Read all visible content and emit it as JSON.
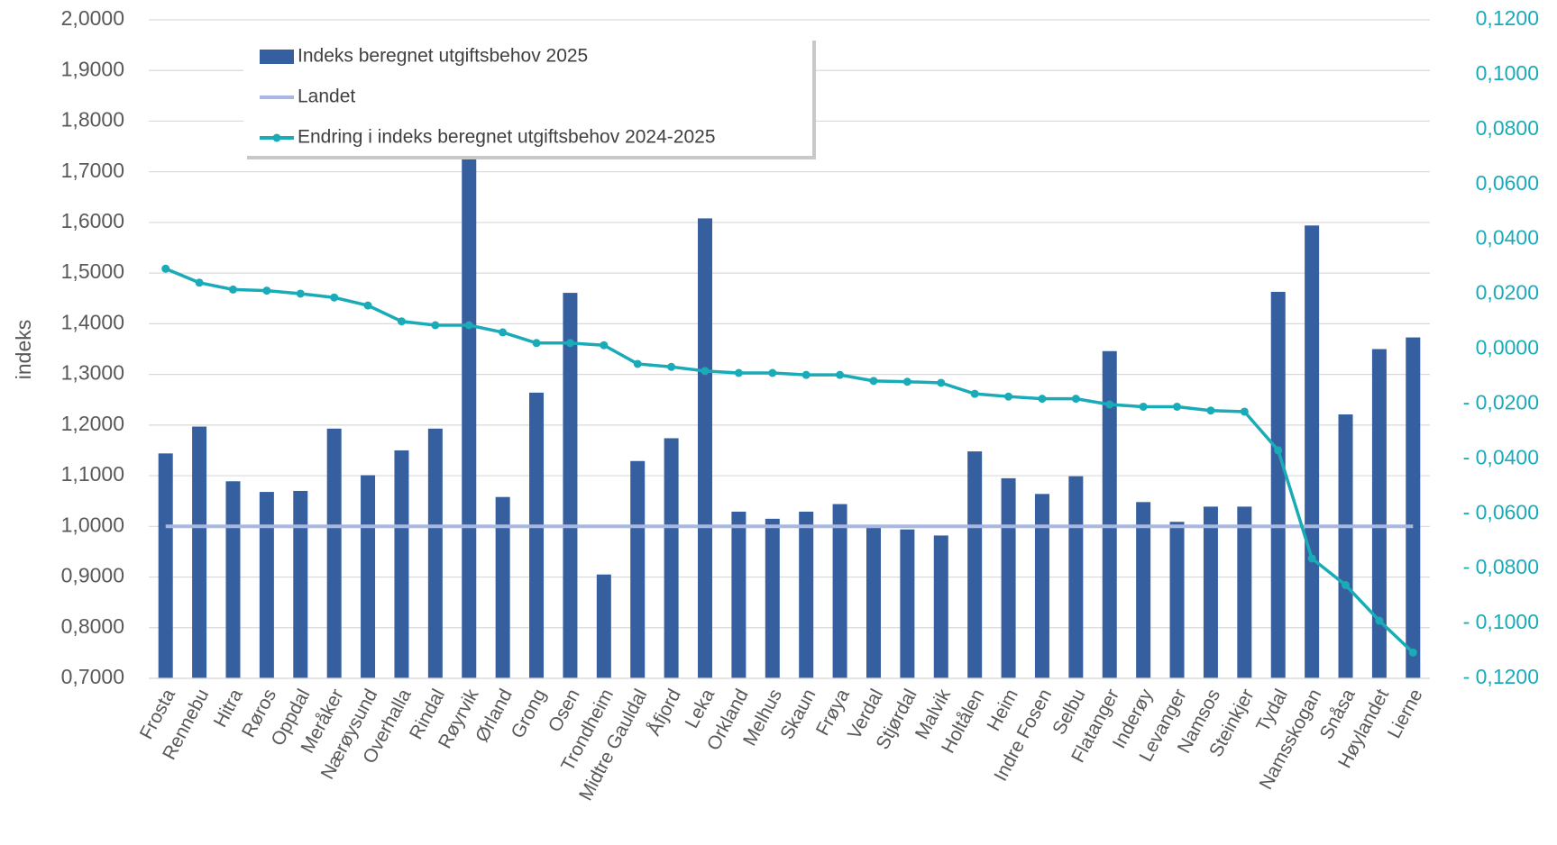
{
  "chart_data": {
    "type": "bar-line",
    "y_label": "indeks",
    "categories": [
      "Frosta",
      "Rennebu",
      "Hitra",
      "Røros",
      "Oppdal",
      "Meråker",
      "Nærøysund",
      "Overhalla",
      "Rindal",
      "Røyrvik",
      "Ørland",
      "Grong",
      "Osen",
      "Trondheim",
      "Midtre Gauldal",
      "Åfjord",
      "Leka",
      "Orkland",
      "Melhus",
      "Skaun",
      "Frøya",
      "Verdal",
      "Stjørdal",
      "Malvik",
      "Holtålen",
      "Heim",
      "Indre Fosen",
      "Selbu",
      "Flatanger",
      "Inderøy",
      "Levanger",
      "Namsos",
      "Steinkjer",
      "Tydal",
      "Namsskogan",
      "Snåsa",
      "Høylandet",
      "Lierne"
    ],
    "series": [
      {
        "name": "Indeks beregnet utgiftsbehov 2025",
        "type": "bar",
        "color": "#365f9f",
        "values": [
          1.144,
          1.197,
          1.089,
          1.068,
          1.07,
          1.193,
          1.101,
          1.15,
          1.193,
          1.95,
          1.058,
          1.264,
          1.461,
          0.905,
          1.129,
          1.174,
          1.608,
          1.029,
          1.015,
          1.029,
          1.044,
          0.997,
          0.994,
          0.982,
          1.148,
          1.095,
          1.064,
          1.099,
          1.346,
          1.048,
          1.009,
          1.039,
          1.039,
          1.463,
          1.594,
          1.221,
          1.35,
          1.373
        ]
      },
      {
        "name": "Landet",
        "type": "hline",
        "color": "#a9b8e0",
        "value": 1
      },
      {
        "name": "Endring i indeks beregnet utgiftsbehov 2024-2025",
        "type": "line",
        "axis": "y2",
        "color": "#1aabb8",
        "values": [
          0.0293,
          0.0242,
          0.0217,
          0.0213,
          0.0202,
          0.0188,
          0.0159,
          0.0101,
          0.0087,
          0.0087,
          0.0061,
          0.0022,
          0.0022,
          0.0014,
          -0.0054,
          -0.0065,
          -0.008,
          -0.0087,
          -0.0087,
          -0.0094,
          -0.0094,
          -0.0116,
          -0.0119,
          -0.0123,
          -0.0163,
          -0.0173,
          -0.0181,
          -0.0181,
          -0.0202,
          -0.021,
          -0.021,
          -0.0224,
          -0.0228,
          -0.0369,
          -0.0763,
          -0.086,
          -0.099,
          -0.1106
        ]
      }
    ],
    "ylim": [
      0.7,
      2.0
    ],
    "yticks": [
      {
        "value": 0.7,
        "label": "0,7000"
      },
      {
        "value": 0.8,
        "label": "0,8000"
      },
      {
        "value": 0.9,
        "label": "0,9000"
      },
      {
        "value": 1.0,
        "label": "1,0000"
      },
      {
        "value": 1.1,
        "label": "1,1000"
      },
      {
        "value": 1.2,
        "label": "1,2000"
      },
      {
        "value": 1.3,
        "label": "1,3000"
      },
      {
        "value": 1.4,
        "label": "1,4000"
      },
      {
        "value": 1.5,
        "label": "1,5000"
      },
      {
        "value": 1.6,
        "label": "1,6000"
      },
      {
        "value": 1.7,
        "label": "1,7000"
      },
      {
        "value": 1.8,
        "label": "1,8000"
      },
      {
        "value": 1.9,
        "label": "1,9000"
      },
      {
        "value": 2.0,
        "label": "2,0000"
      }
    ],
    "y2lim": [
      -0.12,
      0.12
    ],
    "y2ticks": [
      {
        "value": -0.12,
        "label": "- 0,1200"
      },
      {
        "value": -0.1,
        "label": "- 0,1000"
      },
      {
        "value": -0.08,
        "label": "- 0,0800"
      },
      {
        "value": -0.06,
        "label": "- 0,0600"
      },
      {
        "value": -0.04,
        "label": "- 0,0400"
      },
      {
        "value": -0.02,
        "label": "- 0,0200"
      },
      {
        "value": 0,
        "label": "0,0000"
      },
      {
        "value": 0.02,
        "label": "0,0200"
      },
      {
        "value": 0.04,
        "label": "0,0400"
      },
      {
        "value": 0.06,
        "label": "0,0600"
      },
      {
        "value": 0.08,
        "label": "0,0800"
      },
      {
        "value": 0.1,
        "label": "0,1000"
      },
      {
        "value": 0.12,
        "label": "0,1200"
      }
    ],
    "grid": true,
    "legend": "top-left"
  }
}
